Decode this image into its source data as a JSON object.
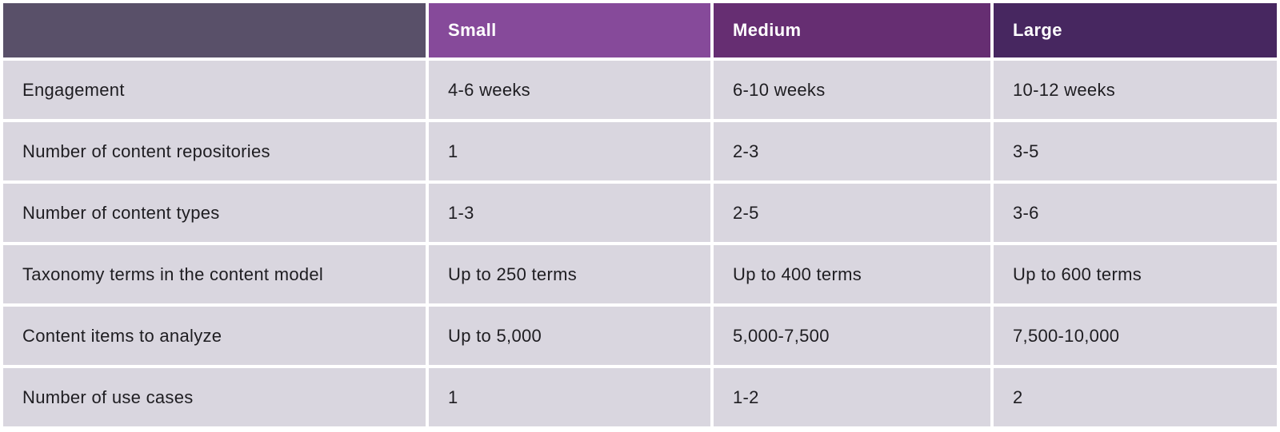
{
  "table": {
    "title": "engagement-sizing-comparison",
    "colors": {
      "corner_header_bg": "#595069",
      "small_header_bg": "#864a9a",
      "medium_header_bg": "#662e72",
      "large_header_bg": "#472760",
      "body_cell_bg": "#d9d6df",
      "body_text": "#1e1d21",
      "header_text": "#ffffff",
      "gutter": "#ffffff"
    },
    "header": {
      "corner": {
        "label": ""
      },
      "small": {
        "label": "Small"
      },
      "medium": {
        "label": "Medium"
      },
      "large": {
        "label": "Large"
      }
    },
    "rows": [
      {
        "cells": [
          "Engagement",
          "4-6 weeks",
          "6-10 weeks",
          "10-12 weeks"
        ]
      },
      {
        "cells": [
          "Number of content repositories",
          "1",
          "2-3",
          "3-5"
        ]
      },
      {
        "cells": [
          "Number of content types",
          "1-3",
          "2-5",
          "3-6"
        ]
      },
      {
        "cells": [
          "Taxonomy terms in the content model",
          "Up to 250 terms",
          "Up to 400 terms",
          "Up to 600 terms"
        ]
      },
      {
        "cells": [
          "Content items to analyze",
          "Up to 5,000",
          "5,000-7,500",
          "7,500-10,000"
        ]
      },
      {
        "cells": [
          "Number of use cases",
          "1",
          "1-2",
          "2"
        ]
      }
    ]
  }
}
